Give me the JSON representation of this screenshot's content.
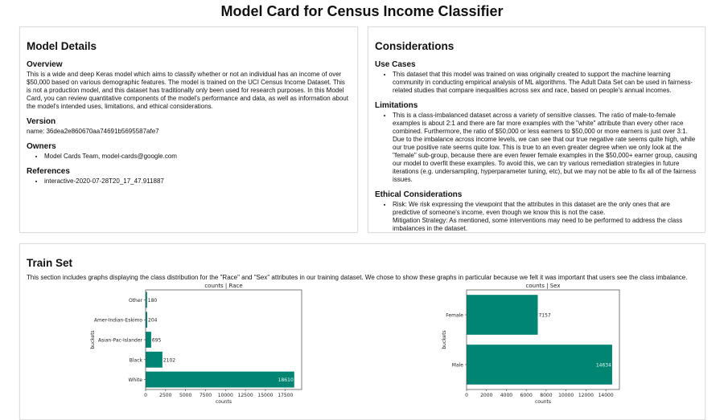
{
  "title": "Model Card for Census Income Classifier",
  "model_details": {
    "heading": "Model Details",
    "overview_heading": "Overview",
    "overview": "This is a wide and deep Keras model which aims to classify whether or not an individual has an income of over $50,000 based on various demographic features. The model is trained on the UCI Census Income Dataset. This is not a production model, and this dataset has traditionally only been used for research purposes. In this Model Card, you can review quantitative components of the model's performance and data, as well as information about the model's intended uses, limitations, and ethical considerations.",
    "version_heading": "Version",
    "version": "name: 36dea2e860670aa74691b5695587afe7",
    "owners_heading": "Owners",
    "owners": [
      "Model Cards Team, model-cards@google.com"
    ],
    "references_heading": "References",
    "references": [
      "interactive-2020-07-28T20_17_47.911887"
    ]
  },
  "considerations": {
    "heading": "Considerations",
    "use_cases_heading": "Use Cases",
    "use_cases": [
      "This dataset that this model was trained on was originally created to support the machine learning community in conducting empirical analysis of ML algorithms. The Adult Data Set can be used in fairness-related studies that compare inequalities across sex and race, based on people's annual incomes."
    ],
    "limitations_heading": "Limitations",
    "limitations": [
      "This is a class-imbalanced dataset across a variety of sensitive classes. The ratio of male-to-female examples is about 2:1 and there are far more examples with the \"white\" attribute than every other race combined. Furthermore, the ratio of $50,000 or less earners to $50,000 or more earners is just over 3:1. Due to the imbalance across income levels, we can see that our true negative rate seems quite high, while our true positive rate seems quite low. This is true to an even greater degree when we only look at the \"female\" sub-group, because there are even fewer female examples in the $50,000+ earner group, causing our model to overfit these examples. To avoid this, we can try various remediation strategies in future iterations (e.g. undersampling, hyperparameter tuning, etc), but we may not be able to fix all of the fairness issues."
    ],
    "ethical_heading": "Ethical Considerations",
    "ethical_risk": "Risk: We risk expressing the viewpoint that the attributes in this dataset are the only ones that are predictive of someone's income, even though we know this is not the case.",
    "ethical_mitigation": "Mitigation Strategy: As mentioned, some interventions may need to be performed to address the class imbalances in the dataset."
  },
  "train_set": {
    "heading": "Train Set",
    "description": "This section includes graphs displaying the class distribution for the \"Race\" and \"Sex\" attributes in our training dataset. We chose to show these graphs in particular because we felt it was important that users see the class imbalance."
  },
  "colors": {
    "bar": "#008573"
  },
  "chart_data": [
    {
      "type": "bar",
      "orientation": "horizontal",
      "title": "counts | Race",
      "xlabel": "counts",
      "ylabel": "buckets",
      "categories": [
        "White",
        "Black",
        "Asian-Pac-Islander",
        "Amer-Indian-Eskimo",
        "Other"
      ],
      "values": [
        18610,
        2102,
        695,
        204,
        180
      ],
      "xticks": [
        0,
        2500,
        5000,
        7500,
        10000,
        12500,
        15000,
        17500
      ],
      "xlim": [
        0,
        19540
      ]
    },
    {
      "type": "bar",
      "orientation": "horizontal",
      "title": "counts | Sex",
      "xlabel": "counts",
      "ylabel": "buckets",
      "categories": [
        "Male",
        "Female"
      ],
      "values": [
        14634,
        7157
      ],
      "xticks": [
        0,
        2000,
        4000,
        6000,
        8000,
        10000,
        12000,
        14000
      ],
      "xlim": [
        0,
        15366
      ]
    }
  ]
}
